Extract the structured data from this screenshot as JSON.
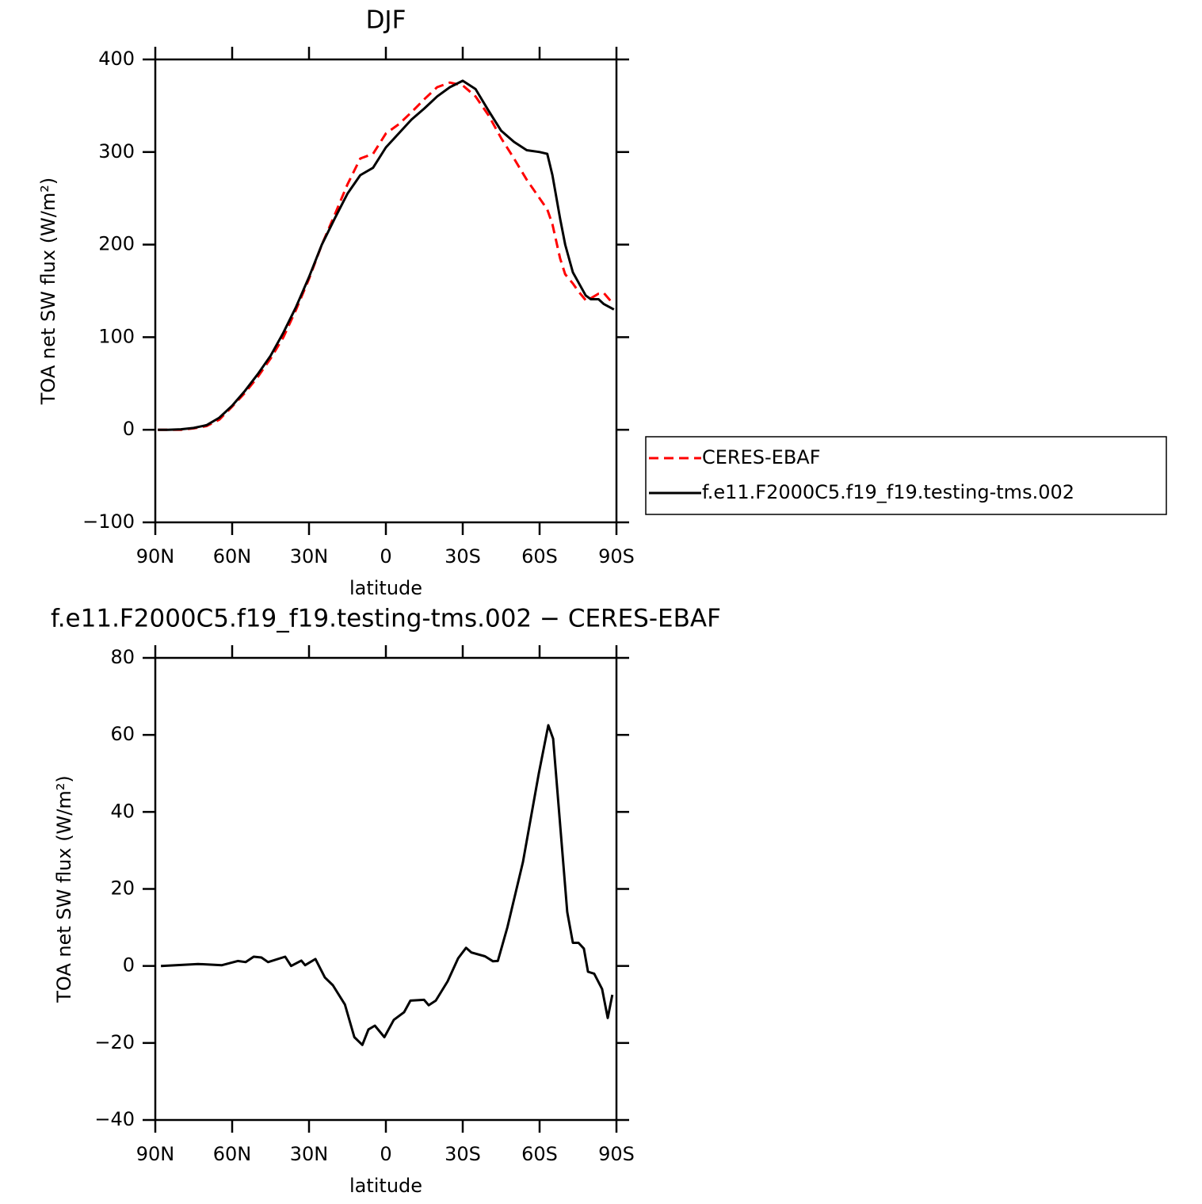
{
  "chart_data": [
    {
      "type": "line",
      "title": "DJF",
      "xlabel": "latitude",
      "ylabel": "TOA net SW flux (W/m²)",
      "x": [
        89,
        85,
        80,
        75,
        70,
        65,
        60,
        55,
        50,
        45,
        40,
        35,
        30,
        25,
        20,
        15,
        10,
        5,
        0,
        -5,
        -10,
        -15,
        -20,
        -25,
        -30,
        -35,
        -40,
        -45,
        -50,
        -55,
        -60,
        -63,
        -65,
        -68,
        -70,
        -73,
        -75,
        -78,
        -80,
        -83,
        -85,
        -89
      ],
      "series": [
        {
          "name": "CERES-EBAF",
          "color": "#ff0000",
          "linestyle": "dashed",
          "values": [
            0,
            0,
            0,
            1.5,
            4,
            11,
            25,
            40,
            57,
            77,
            100,
            130,
            163,
            200,
            232,
            265,
            293,
            298,
            320,
            330,
            343,
            357,
            370,
            375,
            372,
            360,
            340,
            315,
            293,
            270,
            250,
            238,
            222,
            185,
            168,
            158,
            150,
            140,
            142,
            147,
            148,
            135
          ]
        },
        {
          "name": "f.e11.F2000C5.f19_f19.testing-tms.002",
          "color": "#000000",
          "linestyle": "solid",
          "values": [
            0,
            0,
            0.5,
            2,
            5,
            13,
            26,
            42,
            60,
            80,
            105,
            133,
            165,
            200,
            228,
            255,
            275,
            283,
            305,
            320,
            335,
            347,
            360,
            370,
            377,
            368,
            345,
            323,
            311,
            302,
            300,
            298,
            275,
            228,
            200,
            170,
            160,
            145,
            141,
            141,
            136,
            130
          ]
        }
      ],
      "xlim": [
        90,
        -90
      ],
      "xticks": [
        {
          "value": 90,
          "label": "90N"
        },
        {
          "value": 60,
          "label": "60N"
        },
        {
          "value": 30,
          "label": "30N"
        },
        0,
        {
          "value": -30,
          "label": "30S"
        },
        {
          "value": -60,
          "label": "60S"
        },
        {
          "value": -90,
          "label": "90S"
        }
      ],
      "ylim": [
        -100,
        400
      ],
      "yticks": [
        {
          "value": -100,
          "label": "−100"
        },
        0,
        100,
        200,
        300,
        400
      ],
      "legend": "right"
    },
    {
      "type": "line",
      "title": "f.e11.F2000C5.f19_f19.testing-tms.002 − CERES-EBAF",
      "xlabel": "latitude",
      "ylabel": "TOA net SW flux (W/m²)",
      "x": [
        87.8,
        73.3,
        64,
        57.8,
        54.7,
        51.6,
        48.6,
        46,
        39.3,
        37,
        33,
        31.5,
        27.5,
        23.8,
        20.7,
        16,
        12.3,
        9.2,
        6.8,
        4.3,
        0.6,
        -3.1,
        -7.1,
        -9.6,
        -14.9,
        -16.7,
        -19.5,
        -24.1,
        -28.2,
        -31.3,
        -33.4,
        -38.7,
        -41.8,
        -43.7,
        -47.4,
        -53.5,
        -59.7,
        -63.4,
        -65.3,
        -70.8,
        -73,
        -75.2,
        -77.3,
        -78.9,
        -81.3,
        -84.4,
        -86.6,
        -88.4
      ],
      "values": [
        0,
        0.5,
        0.2,
        1.3,
        1,
        2.4,
        2.2,
        1,
        2.4,
        0,
        1.4,
        0.2,
        1.8,
        -3,
        -5,
        -10,
        -18.5,
        -20.5,
        -16.5,
        -15.5,
        -18.5,
        -14,
        -12,
        -9,
        -8.8,
        -10.2,
        -9,
        -4,
        2,
        4.7,
        3.5,
        2.5,
        1.2,
        1.3,
        10,
        27,
        50,
        62.5,
        59,
        14,
        6,
        6,
        4.5,
        -1.5,
        -2,
        -6,
        -13.5,
        -7.5
      ],
      "color": "#000000",
      "xlim": [
        90,
        -90
      ],
      "xticks": [
        {
          "value": 90,
          "label": "90N"
        },
        {
          "value": 60,
          "label": "60N"
        },
        {
          "value": 30,
          "label": "30N"
        },
        0,
        {
          "value": -30,
          "label": "30S"
        },
        {
          "value": -60,
          "label": "60S"
        },
        {
          "value": -90,
          "label": "90S"
        }
      ],
      "ylim": [
        -40,
        80
      ],
      "yticks": [
        {
          "value": -40,
          "label": "−40"
        },
        {
          "value": -20,
          "label": "−20"
        },
        0,
        20,
        40,
        60,
        80
      ]
    }
  ]
}
